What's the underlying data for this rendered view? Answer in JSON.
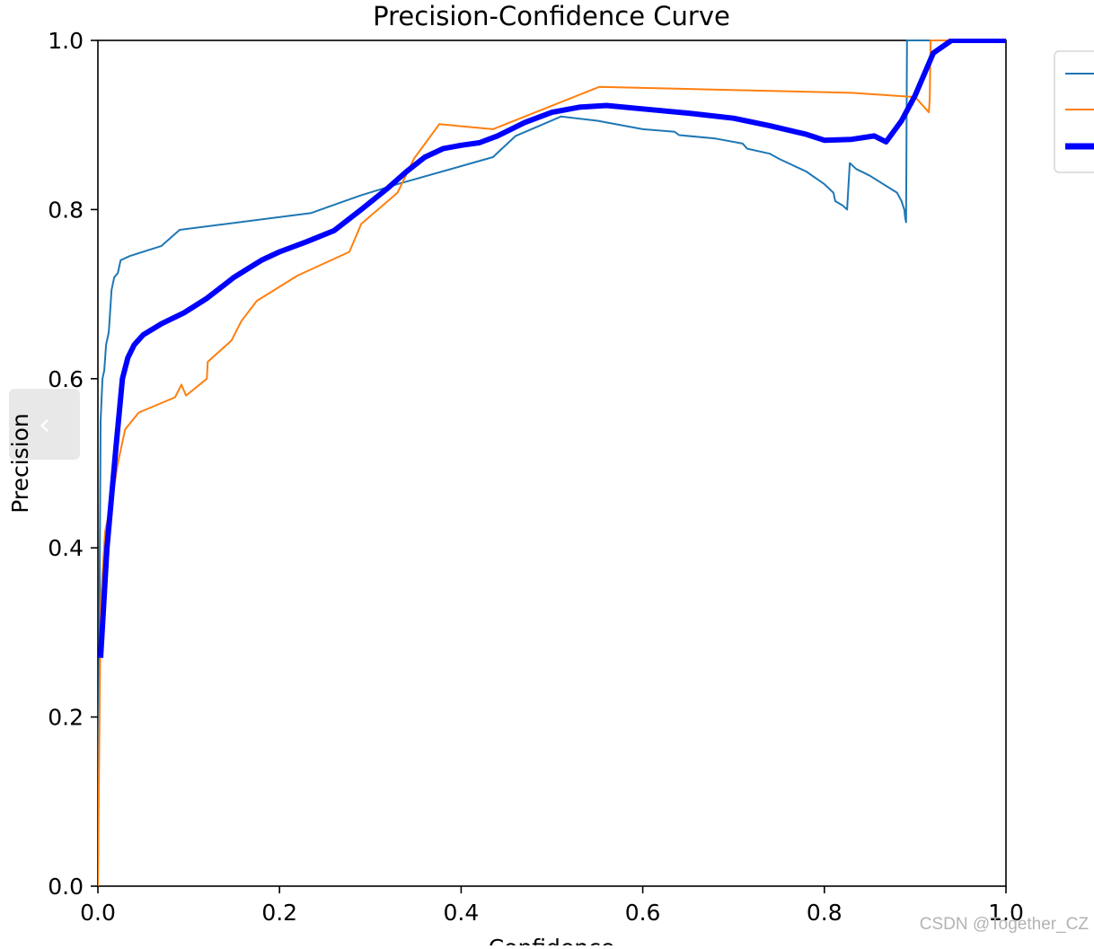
{
  "chart_data": {
    "type": "line",
    "title": "Precision-Confidence Curve",
    "xlabel": "Confidence",
    "ylabel": "Precision",
    "xlim": [
      0.0,
      1.0
    ],
    "ylim": [
      0.0,
      1.0
    ],
    "xticks": [
      "0.0",
      "0.2",
      "0.4",
      "0.6",
      "0.8",
      "1.0"
    ],
    "yticks": [
      "0.0",
      "0.2",
      "0.4",
      "0.6",
      "0.8",
      "1.0"
    ],
    "grid": false,
    "legend_position": "upper-right-outside",
    "series": [
      {
        "color": "#1f77b4",
        "width": "thin",
        "x": [
          0.0,
          0.003,
          0.005,
          0.007,
          0.009,
          0.012,
          0.015,
          0.018,
          0.022,
          0.025,
          0.035,
          0.07,
          0.09,
          0.235,
          0.29,
          0.33,
          0.435,
          0.46,
          0.51,
          0.55,
          0.6,
          0.635,
          0.64,
          0.68,
          0.71,
          0.715,
          0.74,
          0.75,
          0.78,
          0.8,
          0.81,
          0.812,
          0.82,
          0.825,
          0.828,
          0.835,
          0.85,
          0.88,
          0.885,
          0.888,
          0.889,
          0.89,
          0.891,
          1.0
        ],
        "y": [
          0.0,
          0.55,
          0.6,
          0.61,
          0.64,
          0.655,
          0.705,
          0.72,
          0.725,
          0.74,
          0.745,
          0.757,
          0.776,
          0.796,
          0.817,
          0.83,
          0.862,
          0.887,
          0.91,
          0.905,
          0.895,
          0.892,
          0.888,
          0.884,
          0.878,
          0.872,
          0.866,
          0.86,
          0.845,
          0.83,
          0.82,
          0.81,
          0.805,
          0.8,
          0.855,
          0.848,
          0.84,
          0.82,
          0.81,
          0.8,
          0.79,
          0.785,
          1.0,
          1.0
        ]
      },
      {
        "color": "#ff7f0e",
        "width": "thin",
        "x": [
          0.0,
          0.003,
          0.005,
          0.008,
          0.012,
          0.016,
          0.022,
          0.03,
          0.045,
          0.085,
          0.092,
          0.097,
          0.12,
          0.121,
          0.147,
          0.158,
          0.175,
          0.22,
          0.277,
          0.29,
          0.33,
          0.348,
          0.376,
          0.435,
          0.552,
          0.83,
          0.9,
          0.915,
          0.916,
          0.917,
          1.0
        ],
        "y": [
          0.0,
          0.33,
          0.37,
          0.42,
          0.44,
          0.46,
          0.5,
          0.54,
          0.56,
          0.578,
          0.593,
          0.58,
          0.6,
          0.62,
          0.645,
          0.668,
          0.692,
          0.722,
          0.75,
          0.783,
          0.82,
          0.86,
          0.901,
          0.895,
          0.945,
          0.938,
          0.933,
          0.915,
          0.93,
          1.0,
          1.0
        ]
      },
      {
        "color": "#0000ff",
        "width": "thick",
        "x": [
          0.003,
          0.01,
          0.02,
          0.027,
          0.033,
          0.04,
          0.05,
          0.07,
          0.095,
          0.12,
          0.15,
          0.18,
          0.2,
          0.23,
          0.26,
          0.29,
          0.32,
          0.34,
          0.36,
          0.38,
          0.4,
          0.42,
          0.44,
          0.47,
          0.5,
          0.53,
          0.56,
          0.6,
          0.65,
          0.7,
          0.74,
          0.78,
          0.8,
          0.83,
          0.855,
          0.868,
          0.885,
          0.9,
          0.92,
          0.94,
          0.96,
          1.0
        ],
        "y": [
          0.27,
          0.4,
          0.52,
          0.6,
          0.625,
          0.64,
          0.652,
          0.665,
          0.678,
          0.695,
          0.72,
          0.74,
          0.75,
          0.762,
          0.775,
          0.8,
          0.826,
          0.845,
          0.862,
          0.872,
          0.876,
          0.879,
          0.887,
          0.903,
          0.915,
          0.921,
          0.923,
          0.919,
          0.914,
          0.908,
          0.899,
          0.889,
          0.882,
          0.883,
          0.887,
          0.88,
          0.905,
          0.935,
          0.985,
          1.0,
          1.0,
          1.0
        ]
      }
    ]
  },
  "ui": {
    "nav_arrow_glyph": "‹",
    "watermark": "CSDN @Together_CZ"
  }
}
